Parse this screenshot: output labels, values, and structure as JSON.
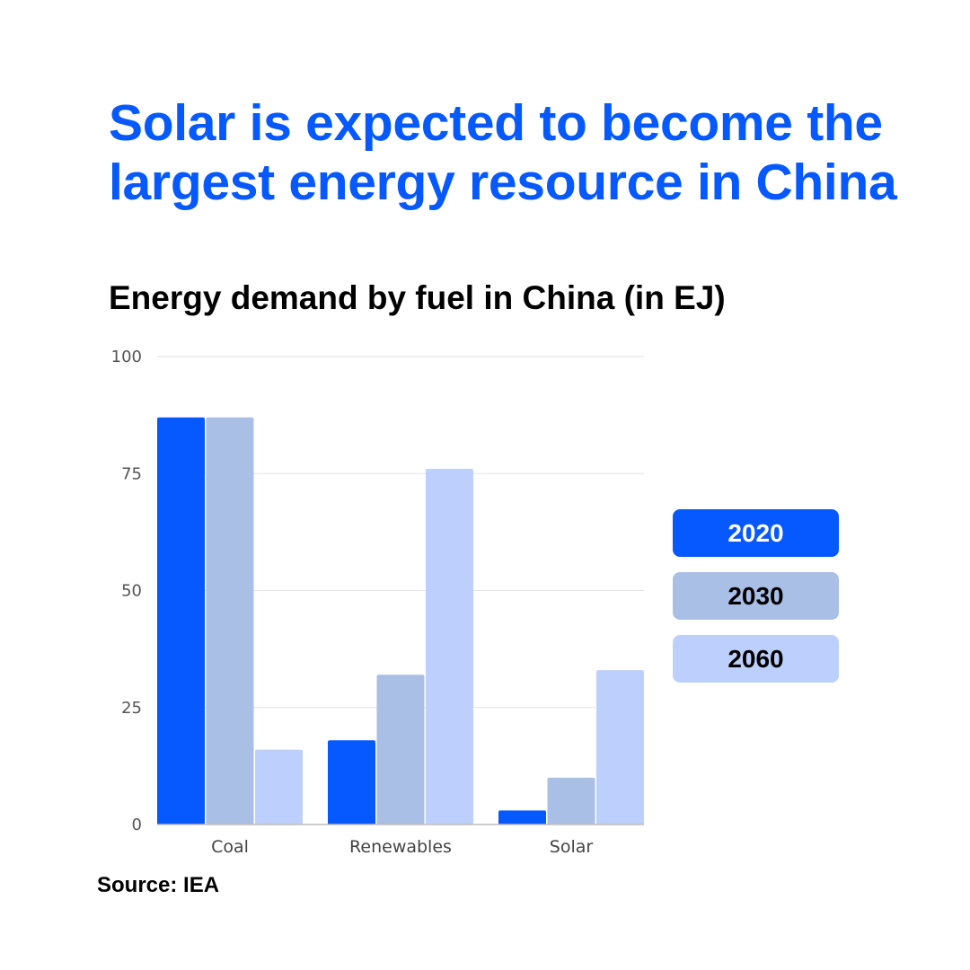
{
  "title": "Solar is expected to become the largest energy resource in China",
  "subtitle": "Energy demand by fuel in China (in EJ)",
  "source": "Source: IEA",
  "colors": {
    "2020": "#0659ff",
    "2030": "#aabfe6",
    "2060": "#bdd0fd",
    "gridline": "#e3e3e3",
    "axis": "#bdbdbd"
  },
  "chart_data": {
    "type": "bar",
    "title": "Energy demand by fuel in China (in EJ)",
    "categories": [
      "Coal",
      "Renewables",
      "Solar"
    ],
    "series": [
      {
        "name": "2020",
        "values": [
          87,
          18,
          3
        ]
      },
      {
        "name": "2030",
        "values": [
          87,
          32,
          10
        ]
      },
      {
        "name": "2060",
        "values": [
          16,
          76,
          33
        ]
      }
    ],
    "ylim": [
      0,
      100
    ],
    "yticks": [
      "0",
      "25",
      "50",
      "75",
      "100"
    ],
    "grid": true,
    "legend": "right"
  }
}
